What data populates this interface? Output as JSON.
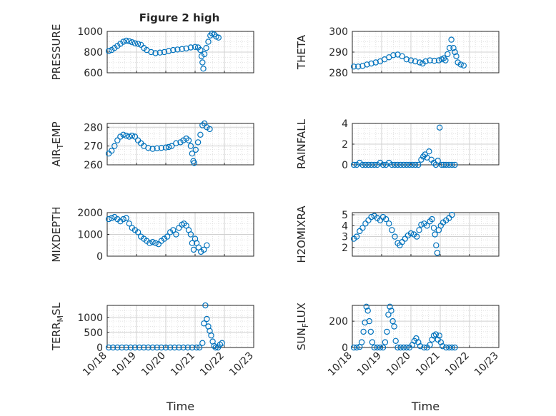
{
  "figure": {
    "title": "Figure 2 high",
    "marker_color": "#0072BD",
    "xlabel": "Time",
    "x_tick_labels": [
      "10/18",
      "10/19",
      "10/20",
      "10/21",
      "10/22",
      "10/23"
    ]
  },
  "chart_data": [
    {
      "type": "scatter",
      "id": "pressure",
      "ylabel": "PRESSURE",
      "ylim": [
        600,
        1000
      ],
      "yticks": [
        600,
        800,
        1000
      ],
      "xlim": [
        0,
        5
      ],
      "grid": true,
      "x_tick_labels": [],
      "points": [
        [
          0.05,
          810
        ],
        [
          0.15,
          820
        ],
        [
          0.25,
          840
        ],
        [
          0.35,
          860
        ],
        [
          0.45,
          880
        ],
        [
          0.55,
          900
        ],
        [
          0.65,
          910
        ],
        [
          0.75,
          905
        ],
        [
          0.85,
          895
        ],
        [
          0.95,
          885
        ],
        [
          1.05,
          880
        ],
        [
          1.15,
          870
        ],
        [
          1.25,
          840
        ],
        [
          1.35,
          820
        ],
        [
          1.5,
          800
        ],
        [
          1.65,
          790
        ],
        [
          1.8,
          795
        ],
        [
          1.95,
          800
        ],
        [
          2.1,
          810
        ],
        [
          2.25,
          820
        ],
        [
          2.4,
          825
        ],
        [
          2.55,
          830
        ],
        [
          2.7,
          835
        ],
        [
          2.85,
          845
        ],
        [
          3.0,
          850
        ],
        [
          3.1,
          845
        ],
        [
          3.18,
          820
        ],
        [
          3.22,
          760
        ],
        [
          3.25,
          700
        ],
        [
          3.28,
          640
        ],
        [
          3.32,
          780
        ],
        [
          3.38,
          840
        ],
        [
          3.45,
          900
        ],
        [
          3.52,
          960
        ],
        [
          3.58,
          980
        ],
        [
          3.65,
          970
        ],
        [
          3.72,
          950
        ],
        [
          3.8,
          940
        ]
      ]
    },
    {
      "type": "scatter",
      "id": "theta",
      "ylabel": "THETA",
      "ylim": [
        280,
        300
      ],
      "yticks": [
        280,
        290,
        300
      ],
      "xlim": [
        0,
        5
      ],
      "grid": true,
      "x_tick_labels": [],
      "points": [
        [
          0.05,
          283
        ],
        [
          0.2,
          283
        ],
        [
          0.35,
          283.3
        ],
        [
          0.5,
          284
        ],
        [
          0.65,
          284.5
        ],
        [
          0.8,
          285
        ],
        [
          0.95,
          285.5
        ],
        [
          1.1,
          286.5
        ],
        [
          1.25,
          287.5
        ],
        [
          1.4,
          288.5
        ],
        [
          1.55,
          288.8
        ],
        [
          1.7,
          288
        ],
        [
          1.85,
          286.5
        ],
        [
          2.0,
          286
        ],
        [
          2.15,
          285.5
        ],
        [
          2.3,
          285
        ],
        [
          2.4,
          284.5
        ],
        [
          2.5,
          285.5
        ],
        [
          2.65,
          286
        ],
        [
          2.8,
          285.8
        ],
        [
          2.95,
          286
        ],
        [
          3.05,
          286.5
        ],
        [
          3.12,
          287
        ],
        [
          3.18,
          286
        ],
        [
          3.25,
          289
        ],
        [
          3.32,
          292
        ],
        [
          3.38,
          296
        ],
        [
          3.45,
          292
        ],
        [
          3.5,
          290
        ],
        [
          3.55,
          288
        ],
        [
          3.6,
          285
        ],
        [
          3.7,
          284
        ],
        [
          3.8,
          283.5
        ]
      ]
    },
    {
      "type": "scatter",
      "id": "air_temp",
      "ylabel": "AIR_TEMP",
      "ylim": [
        260,
        282
      ],
      "yticks": [
        260,
        270,
        280
      ],
      "xlim": [
        0,
        5
      ],
      "grid": true,
      "x_tick_labels": [],
      "points": [
        [
          0.05,
          266
        ],
        [
          0.15,
          267.5
        ],
        [
          0.25,
          270
        ],
        [
          0.35,
          273
        ],
        [
          0.45,
          275
        ],
        [
          0.55,
          276
        ],
        [
          0.65,
          275.5
        ],
        [
          0.75,
          275
        ],
        [
          0.85,
          275.5
        ],
        [
          0.95,
          275
        ],
        [
          1.05,
          273
        ],
        [
          1.15,
          271.5
        ],
        [
          1.25,
          270
        ],
        [
          1.4,
          269
        ],
        [
          1.55,
          268.5
        ],
        [
          1.7,
          268.8
        ],
        [
          1.85,
          269
        ],
        [
          2.0,
          269.2
        ],
        [
          2.1,
          269.5
        ],
        [
          2.2,
          270
        ],
        [
          2.35,
          271.5
        ],
        [
          2.5,
          272
        ],
        [
          2.6,
          273
        ],
        [
          2.7,
          274
        ],
        [
          2.78,
          273
        ],
        [
          2.85,
          270
        ],
        [
          2.9,
          266
        ],
        [
          2.94,
          262
        ],
        [
          2.97,
          261
        ],
        [
          3.02,
          268
        ],
        [
          3.1,
          272
        ],
        [
          3.18,
          276
        ],
        [
          3.25,
          281
        ],
        [
          3.32,
          282
        ],
        [
          3.4,
          280
        ],
        [
          3.5,
          279
        ]
      ]
    },
    {
      "type": "scatter",
      "id": "rainfall",
      "ylabel": "RAINFALL",
      "ylim": [
        0,
        4
      ],
      "yticks": [
        0,
        2,
        4
      ],
      "xlim": [
        0,
        5
      ],
      "grid": true,
      "x_tick_labels": [],
      "points": [
        [
          0.05,
          0
        ],
        [
          0.15,
          0
        ],
        [
          0.25,
          0.2
        ],
        [
          0.35,
          0
        ],
        [
          0.45,
          0
        ],
        [
          0.55,
          0
        ],
        [
          0.65,
          0
        ],
        [
          0.75,
          0
        ],
        [
          0.85,
          0
        ],
        [
          0.95,
          0.2
        ],
        [
          1.05,
          0
        ],
        [
          1.15,
          0
        ],
        [
          1.25,
          0.2
        ],
        [
          1.35,
          0
        ],
        [
          1.45,
          0
        ],
        [
          1.55,
          0
        ],
        [
          1.65,
          0
        ],
        [
          1.75,
          0
        ],
        [
          1.85,
          0
        ],
        [
          1.95,
          0
        ],
        [
          2.05,
          0
        ],
        [
          2.15,
          0
        ],
        [
          2.25,
          0
        ],
        [
          2.35,
          0.5
        ],
        [
          2.42,
          0.8
        ],
        [
          2.48,
          1.0
        ],
        [
          2.55,
          0.7
        ],
        [
          2.62,
          1.3
        ],
        [
          2.7,
          0.5
        ],
        [
          2.78,
          0.2
        ],
        [
          2.85,
          0
        ],
        [
          2.92,
          0.4
        ],
        [
          2.98,
          3.6
        ],
        [
          3.05,
          0
        ],
        [
          3.12,
          0
        ],
        [
          3.2,
          0
        ],
        [
          3.3,
          0
        ],
        [
          3.4,
          0
        ],
        [
          3.5,
          0
        ]
      ]
    },
    {
      "type": "scatter",
      "id": "mixdepth",
      "ylabel": "MIXDEPTH",
      "ylim": [
        0,
        2000
      ],
      "yticks": [
        0,
        1000,
        2000
      ],
      "xlim": [
        0,
        5
      ],
      "grid": true,
      "x_tick_labels": [],
      "points": [
        [
          0.05,
          1700
        ],
        [
          0.15,
          1750
        ],
        [
          0.25,
          1800
        ],
        [
          0.35,
          1700
        ],
        [
          0.45,
          1600
        ],
        [
          0.55,
          1700
        ],
        [
          0.65,
          1750
        ],
        [
          0.75,
          1500
        ],
        [
          0.85,
          1300
        ],
        [
          0.95,
          1200
        ],
        [
          1.05,
          1100
        ],
        [
          1.15,
          900
        ],
        [
          1.25,
          800
        ],
        [
          1.35,
          700
        ],
        [
          1.45,
          600
        ],
        [
          1.55,
          650
        ],
        [
          1.65,
          600
        ],
        [
          1.75,
          550
        ],
        [
          1.85,
          700
        ],
        [
          1.95,
          800
        ],
        [
          2.05,
          900
        ],
        [
          2.15,
          1100
        ],
        [
          2.25,
          1200
        ],
        [
          2.35,
          1000
        ],
        [
          2.45,
          1300
        ],
        [
          2.55,
          1450
        ],
        [
          2.62,
          1500
        ],
        [
          2.7,
          1400
        ],
        [
          2.78,
          1200
        ],
        [
          2.85,
          1000
        ],
        [
          2.9,
          600
        ],
        [
          2.95,
          300
        ],
        [
          3.0,
          800
        ],
        [
          3.05,
          600
        ],
        [
          3.12,
          400
        ],
        [
          3.2,
          200
        ],
        [
          3.3,
          300
        ],
        [
          3.4,
          500
        ]
      ]
    },
    {
      "type": "scatter",
      "id": "h2omixra",
      "ylabel": "H2OMIXRA",
      "ylim": [
        1.2,
        5.2
      ],
      "yticks": [
        2,
        3,
        4,
        5
      ],
      "xlim": [
        0,
        5
      ],
      "grid": true,
      "x_tick_labels": [],
      "points": [
        [
          0.05,
          2.8
        ],
        [
          0.15,
          3.0
        ],
        [
          0.25,
          3.5
        ],
        [
          0.35,
          3.8
        ],
        [
          0.45,
          4.2
        ],
        [
          0.55,
          4.5
        ],
        [
          0.65,
          4.8
        ],
        [
          0.75,
          4.9
        ],
        [
          0.85,
          4.7
        ],
        [
          0.95,
          4.5
        ],
        [
          1.05,
          4.8
        ],
        [
          1.15,
          4.6
        ],
        [
          1.25,
          4.2
        ],
        [
          1.35,
          3.6
        ],
        [
          1.45,
          3.0
        ],
        [
          1.55,
          2.4
        ],
        [
          1.62,
          2.2
        ],
        [
          1.7,
          2.5
        ],
        [
          1.8,
          2.8
        ],
        [
          1.9,
          3.1
        ],
        [
          2.0,
          3.3
        ],
        [
          2.1,
          3.2
        ],
        [
          2.2,
          3.0
        ],
        [
          2.28,
          3.6
        ],
        [
          2.35,
          4.1
        ],
        [
          2.45,
          4.2
        ],
        [
          2.55,
          4.0
        ],
        [
          2.65,
          4.4
        ],
        [
          2.72,
          4.6
        ],
        [
          2.78,
          3.8
        ],
        [
          2.82,
          3.2
        ],
        [
          2.86,
          2.2
        ],
        [
          2.9,
          1.5
        ],
        [
          2.95,
          3.6
        ],
        [
          3.02,
          4.0
        ],
        [
          3.1,
          4.3
        ],
        [
          3.2,
          4.5
        ],
        [
          3.3,
          4.7
        ],
        [
          3.4,
          5.0
        ]
      ]
    },
    {
      "type": "scatter",
      "id": "terr_msl",
      "ylabel": "TERR_MSL",
      "ylim": [
        0,
        1400
      ],
      "yticks": [
        0,
        500,
        1000
      ],
      "xlim": [
        0,
        5
      ],
      "grid": true,
      "x_tick_labels": [
        "10/18",
        "10/19",
        "10/20",
        "10/21",
        "10/22",
        "10/23"
      ],
      "xlabel": "Time",
      "points": [
        [
          0.05,
          0
        ],
        [
          0.2,
          0
        ],
        [
          0.35,
          0
        ],
        [
          0.5,
          0
        ],
        [
          0.65,
          0
        ],
        [
          0.8,
          0
        ],
        [
          0.95,
          0
        ],
        [
          1.1,
          0
        ],
        [
          1.25,
          0
        ],
        [
          1.4,
          0
        ],
        [
          1.55,
          0
        ],
        [
          1.7,
          0
        ],
        [
          1.85,
          0
        ],
        [
          2.0,
          0
        ],
        [
          2.15,
          0
        ],
        [
          2.3,
          0
        ],
        [
          2.45,
          0
        ],
        [
          2.6,
          0
        ],
        [
          2.75,
          0
        ],
        [
          2.9,
          0
        ],
        [
          3.05,
          0
        ],
        [
          3.15,
          0
        ],
        [
          3.25,
          150
        ],
        [
          3.3,
          800
        ],
        [
          3.35,
          1400
        ],
        [
          3.4,
          950
        ],
        [
          3.45,
          700
        ],
        [
          3.5,
          550
        ],
        [
          3.55,
          400
        ],
        [
          3.6,
          200
        ],
        [
          3.65,
          50
        ],
        [
          3.7,
          0
        ],
        [
          3.78,
          0
        ],
        [
          3.85,
          100
        ],
        [
          3.92,
          150
        ]
      ]
    },
    {
      "type": "scatter",
      "id": "sun_flux",
      "ylabel": "SUN_FLUX",
      "ylim": [
        0,
        320
      ],
      "yticks": [
        0,
        200
      ],
      "xlim": [
        0,
        5
      ],
      "grid": true,
      "x_tick_labels": [
        "10/18",
        "10/19",
        "10/20",
        "10/21",
        "10/22",
        "10/23"
      ],
      "xlabel": "Time",
      "points": [
        [
          0.05,
          0
        ],
        [
          0.15,
          0
        ],
        [
          0.25,
          5
        ],
        [
          0.32,
          40
        ],
        [
          0.38,
          120
        ],
        [
          0.43,
          190
        ],
        [
          0.48,
          310
        ],
        [
          0.53,
          280
        ],
        [
          0.58,
          200
        ],
        [
          0.63,
          120
        ],
        [
          0.68,
          40
        ],
        [
          0.75,
          0
        ],
        [
          0.85,
          0
        ],
        [
          0.95,
          0
        ],
        [
          1.05,
          0
        ],
        [
          1.12,
          40
        ],
        [
          1.18,
          120
        ],
        [
          1.23,
          250
        ],
        [
          1.28,
          310
        ],
        [
          1.33,
          280
        ],
        [
          1.38,
          200
        ],
        [
          1.43,
          160
        ],
        [
          1.48,
          50
        ],
        [
          1.55,
          0
        ],
        [
          1.65,
          0
        ],
        [
          1.75,
          0
        ],
        [
          1.85,
          0
        ],
        [
          1.95,
          0
        ],
        [
          2.05,
          20
        ],
        [
          2.12,
          50
        ],
        [
          2.18,
          70
        ],
        [
          2.25,
          40
        ],
        [
          2.32,
          10
        ],
        [
          2.45,
          0
        ],
        [
          2.55,
          0
        ],
        [
          2.65,
          20
        ],
        [
          2.72,
          60
        ],
        [
          2.78,
          90
        ],
        [
          2.85,
          100
        ],
        [
          2.92,
          60
        ],
        [
          2.97,
          90
        ],
        [
          3.02,
          40
        ],
        [
          3.08,
          10
        ],
        [
          3.2,
          0
        ],
        [
          3.3,
          0
        ],
        [
          3.4,
          0
        ],
        [
          3.5,
          0
        ]
      ]
    }
  ]
}
